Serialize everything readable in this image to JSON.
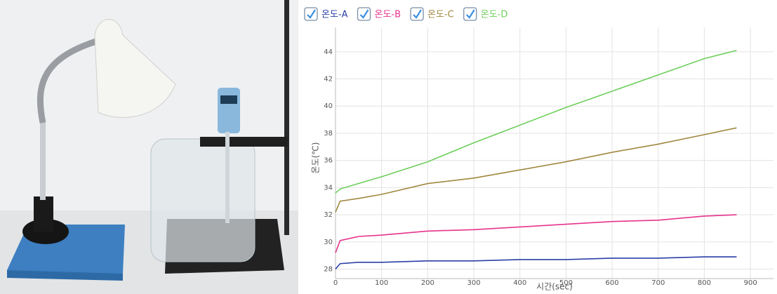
{
  "chart_data": {
    "type": "line",
    "x_label": "시간(sec)",
    "y_label": "온도(℃)",
    "x": [
      0,
      10,
      50,
      100,
      200,
      300,
      400,
      500,
      600,
      700,
      800,
      870
    ],
    "series": [
      {
        "name": "온도-A",
        "color": "#2a3fa6",
        "values": [
          28.0,
          28.4,
          28.5,
          28.5,
          28.6,
          28.6,
          28.7,
          28.7,
          28.8,
          28.8,
          28.9,
          28.9
        ]
      },
      {
        "name": "온도-B",
        "color": "#e6338c",
        "values": [
          29.2,
          30.1,
          30.4,
          30.5,
          30.8,
          30.9,
          31.1,
          31.3,
          31.5,
          31.6,
          31.9,
          32.0
        ]
      },
      {
        "name": "온도-C",
        "color": "#a08840",
        "values": [
          32.2,
          33.0,
          33.2,
          33.5,
          34.3,
          34.7,
          35.3,
          35.9,
          36.6,
          37.2,
          37.9,
          38.4
        ]
      },
      {
        "name": "온도-D",
        "color": "#6ccf5a",
        "values": [
          33.6,
          33.9,
          34.3,
          34.8,
          35.9,
          37.3,
          38.6,
          39.9,
          41.1,
          42.3,
          43.5,
          44.1
        ]
      }
    ],
    "xlim": [
      0,
      950
    ],
    "xticks": [
      0,
      100,
      200,
      300,
      400,
      500,
      600,
      700,
      800,
      900
    ],
    "ylim": [
      27.3,
      45.8
    ],
    "yticks": [
      28,
      30,
      32,
      34,
      36,
      38,
      40,
      42,
      44
    ],
    "grid": true
  }
}
